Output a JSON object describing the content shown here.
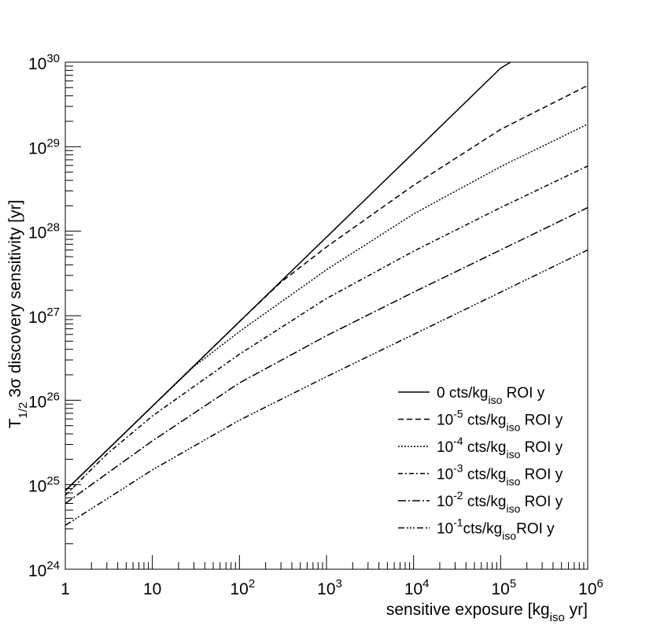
{
  "chart_data": {
    "type": "line",
    "xlabel": "sensitive exposure [kg",
    "xlabel_sub": "iso",
    "xlabel_tail": " yr]",
    "ylabel_T": "T",
    "ylabel_sub": "1/2",
    "ylabel_tail": " 3σ discovery sensitivity [yr]",
    "x_scale": "log",
    "y_scale": "log",
    "xlim": [
      1,
      1000000
    ],
    "ylim": [
      1e+24,
      1e+30
    ],
    "x_ticks": [
      {
        "value": 1,
        "label": "1"
      },
      {
        "value": 10,
        "label": "10"
      },
      {
        "value": 100,
        "base": "10",
        "exp": "2"
      },
      {
        "value": 1000,
        "base": "10",
        "exp": "3"
      },
      {
        "value": 10000,
        "base": "10",
        "exp": "4"
      },
      {
        "value": 100000,
        "base": "10",
        "exp": "5"
      },
      {
        "value": 1000000,
        "base": "10",
        "exp": "6"
      }
    ],
    "y_ticks": [
      {
        "value": 1e+24,
        "base": "10",
        "exp": "24"
      },
      {
        "value": 1e+25,
        "base": "10",
        "exp": "25"
      },
      {
        "value": 1e+26,
        "base": "10",
        "exp": "26"
      },
      {
        "value": 1e+27,
        "base": "10",
        "exp": "27"
      },
      {
        "value": 1e+28,
        "base": "10",
        "exp": "28"
      },
      {
        "value": 1e+29,
        "base": "10",
        "exp": "29"
      },
      {
        "value": 1e+30,
        "base": "10",
        "exp": "30"
      }
    ],
    "legend_position": "bottom-right",
    "series": [
      {
        "name_pre": "0 cts/kg",
        "name_exp": "",
        "name_sub": "iso",
        "name_post": " ROI y",
        "dash": "none",
        "x": [
          1,
          10,
          100,
          1000,
          10000,
          100000,
          130000
        ],
        "y": [
          8.5e+24,
          8.5e+25,
          8.5e+26,
          8.5e+27,
          8.5e+28,
          8.5e+29,
          1e+30
        ]
      },
      {
        "name_pre": "10",
        "name_exp": "-5",
        "name_sub": "iso",
        "name_post": " ROI y",
        "name_mid": " cts/kg",
        "dash": "7,4",
        "x": [
          1,
          10,
          100,
          300,
          1000,
          10000,
          100000,
          1000000
        ],
        "y": [
          8.5e+24,
          8.5e+25,
          8.5e+26,
          2.5e+27,
          6.5e+27,
          3.5e+28,
          1.6e+29,
          5.3e+29
        ]
      },
      {
        "name_pre": "10",
        "name_exp": "-4",
        "name_sub": "iso",
        "name_post": " ROI y",
        "name_mid": " cts/kg",
        "dash": "2,2",
        "x": [
          1,
          10,
          30,
          100,
          1000,
          10000,
          100000,
          1000000
        ],
        "y": [
          8.5e+24,
          8.5e+25,
          2.5e+26,
          6.5e+26,
          3.5e+27,
          1.6e+28,
          5.8e+28,
          1.85e+29
        ]
      },
      {
        "name_pre": "10",
        "name_exp": "-3",
        "name_sub": "iso",
        "name_post": " ROI y",
        "name_mid": " cts/kg",
        "dash": "6,3,2,3",
        "x": [
          1,
          3,
          10,
          100,
          1000,
          10000,
          100000,
          1000000
        ],
        "y": [
          7.5e+24,
          2.3e+25,
          6.5e+25,
          3.5e+26,
          1.6e+27,
          5.8e+27,
          1.9e+28,
          5.9e+28
        ]
      },
      {
        "name_pre": "10",
        "name_exp": "-2",
        "name_sub": "iso",
        "name_post": " ROI y",
        "name_mid": " cts/kg",
        "dash": "10,3,2,3",
        "x": [
          1,
          10,
          100,
          1000,
          10000,
          100000,
          1000000
        ],
        "y": [
          6e+24,
          3.3e+25,
          1.6e+26,
          5.8e+26,
          1.9e+27,
          6e+27,
          1.9e+28
        ]
      },
      {
        "name_pre": "10",
        "name_exp": "-1",
        "name_sub": "iso",
        "name_post": "ROI y",
        "name_mid": "cts/kg",
        "dash": "8,3,2,2,2,2,2,3",
        "x": [
          1,
          10,
          100,
          1000,
          10000,
          100000,
          1000000
        ],
        "y": [
          3.3e+24,
          1.5e+25,
          5.8e+25,
          1.9e+26,
          6e+26,
          1.9e+27,
          6e+27
        ]
      }
    ]
  }
}
